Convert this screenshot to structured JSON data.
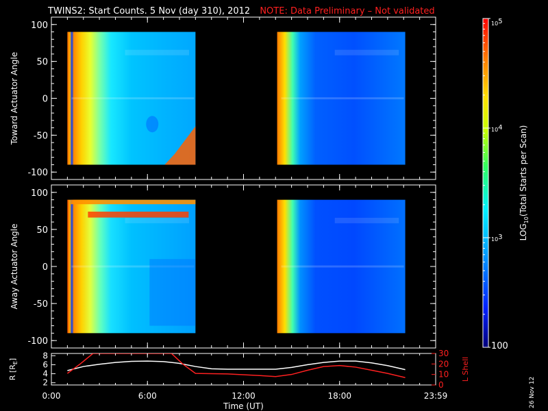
{
  "title": {
    "main": "TWINS2: Start Counts.  5 Nov (day 310), 2012",
    "note": "NOTE: Data Preliminary – Not validated"
  },
  "date_stamp": "26 Nov 12",
  "colors": {
    "background": "#000000",
    "axes": "#ffffff",
    "note": "#ff2020",
    "r_line": "#ffffff",
    "l_line": "#ff2020"
  },
  "chart_data": [
    {
      "type": "heatmap",
      "panel": "top",
      "ylabel": "Toward Actuator Angle",
      "ylim": [
        -110,
        110
      ],
      "yticks": [
        "100",
        "50",
        "0",
        "-50",
        "-100"
      ],
      "xlim_hours": [
        0,
        24
      ],
      "data_intervals_hours": [
        [
          1.0,
          9.0
        ],
        [
          14.1,
          22.1
        ]
      ],
      "colormap": "rainbow-log",
      "zlim": [
        100,
        100000
      ]
    },
    {
      "type": "heatmap",
      "panel": "middle",
      "ylabel": "Away Actuator Angle",
      "ylim": [
        -110,
        110
      ],
      "yticks": [
        "100",
        "50",
        "0",
        "-50",
        "-100"
      ],
      "xlim_hours": [
        0,
        24
      ],
      "data_intervals_hours": [
        [
          1.0,
          9.0
        ],
        [
          14.1,
          22.1
        ]
      ],
      "colormap": "rainbow-log",
      "zlim": [
        100,
        100000
      ]
    },
    {
      "type": "line",
      "panel": "bottom",
      "xlabel": "Time (UT)",
      "xticks": [
        "0:00",
        "6:00",
        "12:00",
        "18:00",
        "23:59"
      ],
      "ylabel_left": "R [R",
      "ylabel_left_sub": "E",
      "ylabel_left_end": "]",
      "ylabel_right": "L Shell",
      "yticks_left": [
        "8",
        "6",
        "4",
        "2"
      ],
      "yticks_right": [
        "30",
        "20",
        "10",
        "0"
      ],
      "ylim_left": [
        1.5,
        8.5
      ],
      "ylim_right": [
        0,
        30
      ],
      "series": [
        {
          "axis": "left",
          "x": [
            1.0,
            2.0,
            3.0,
            4.0,
            5.0,
            6.0,
            7.0,
            8.0,
            9.0,
            10.0,
            11.0,
            12.0,
            13.0,
            14.0,
            15.0,
            16.0,
            17.0,
            18.0,
            19.0,
            20.0,
            21.0,
            22.1
          ],
          "y": [
            4.7,
            5.6,
            6.1,
            6.5,
            6.75,
            6.8,
            6.7,
            6.3,
            5.6,
            5.1,
            5.0,
            5.0,
            5.0,
            5.0,
            5.4,
            6.0,
            6.5,
            6.8,
            6.8,
            6.4,
            5.8,
            4.9
          ]
        },
        {
          "axis": "right",
          "x": [
            1.0,
            1.8,
            2.6,
            7.5,
            8.2,
            9.0,
            11.0,
            13.0,
            14.0,
            15.0,
            16.0,
            17.0,
            18.0,
            19.0,
            20.0,
            21.0,
            22.1
          ],
          "y": [
            11,
            20,
            30,
            30,
            20,
            11,
            10.5,
            9,
            8,
            10,
            14,
            17.5,
            18.5,
            17,
            14,
            11,
            7
          ]
        }
      ]
    },
    {
      "type": "colorbar",
      "ylabel": "LOG10(Total Starts per Scan)",
      "label_main": "LOG",
      "label_sub": "10",
      "label_rest": "(Total Starts per Scan)",
      "ticks": [
        {
          "base": "10",
          "exp": "5",
          "value": 100000
        },
        {
          "base": "10",
          "exp": "4",
          "value": 10000
        },
        {
          "base": "10",
          "exp": "3",
          "value": 1000
        },
        {
          "base": "100",
          "exp": "",
          "value": 100
        }
      ]
    }
  ]
}
